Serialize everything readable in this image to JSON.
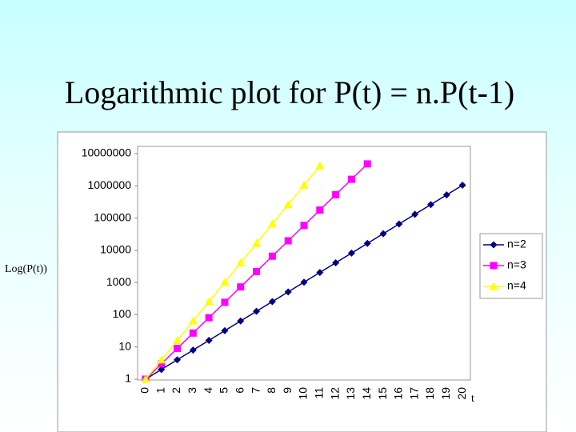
{
  "chart_data": {
    "type": "line",
    "title": "Logarithmic plot for P(t) = n.P(t-1)",
    "y_label": "Log(P(t))",
    "x_label": "t",
    "x": [
      0,
      1,
      2,
      3,
      4,
      5,
      6,
      7,
      8,
      9,
      10,
      11,
      12,
      13,
      14,
      15,
      16,
      17,
      18,
      19,
      20
    ],
    "log_y": true,
    "ylim": [
      1,
      10000000
    ],
    "yticks": [
      1,
      10,
      100,
      1000,
      10000,
      100000,
      1000000,
      10000000
    ],
    "grid": false,
    "legend": "right",
    "series": [
      {
        "name": "n=2",
        "color": "#000080",
        "marker": "diamond",
        "values": [
          1,
          2,
          4,
          8,
          16,
          32,
          64,
          128,
          256,
          512,
          1024,
          2048,
          4096,
          8192,
          16384,
          32768,
          65536,
          131072,
          262144,
          524288,
          1048576
        ]
      },
      {
        "name": "n=3",
        "color": "#ff00ff",
        "marker": "square",
        "values": [
          1,
          3,
          9,
          27,
          81,
          243,
          729,
          2187,
          6561,
          19683,
          59049,
          177147,
          531441,
          1594323,
          4782969,
          null,
          null,
          null,
          null,
          null,
          null
        ]
      },
      {
        "name": "n=4",
        "color": "#ffff00",
        "marker": "triangle",
        "values": [
          1,
          4,
          16,
          64,
          256,
          1024,
          4096,
          16384,
          65536,
          262144,
          1048576,
          4194304,
          null,
          null,
          null,
          null,
          null,
          null,
          null,
          null,
          null
        ]
      }
    ]
  }
}
